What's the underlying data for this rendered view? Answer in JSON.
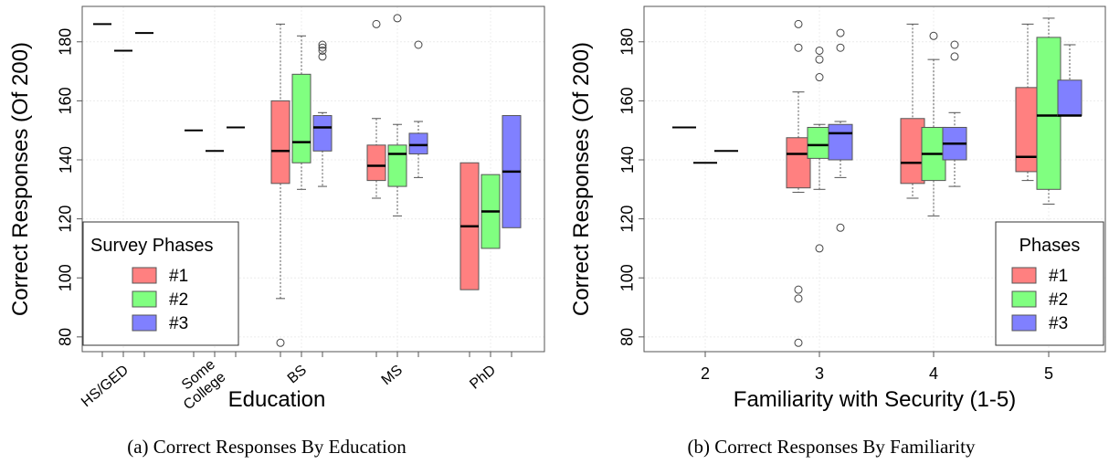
{
  "chart_data": [
    {
      "type": "box",
      "caption": "(a) Correct Responses By Education",
      "xlabel": "Education",
      "ylabel": "Correct Responses (Of 200)",
      "ylim": [
        75,
        192
      ],
      "yticks": [
        80,
        100,
        120,
        140,
        160,
        180
      ],
      "grid": true,
      "categories": [
        "HS/GED",
        "Some College",
        "BS",
        "MS",
        "PhD"
      ],
      "category_labels": [
        [
          "HS/GED"
        ],
        [
          "Some",
          "College"
        ],
        [
          "BS"
        ],
        [
          "MS"
        ],
        [
          "PhD"
        ]
      ],
      "legend": {
        "title": "Survey Phases",
        "position": "bottom-left",
        "entries": [
          "#1",
          "#2",
          "#3"
        ]
      },
      "series": [
        {
          "name": "#1",
          "color": "#ff8080",
          "boxes": [
            {
              "category": "HS/GED",
              "min": 186,
              "q1": 186,
              "median": 186,
              "q3": 186,
              "max": 186,
              "outliers": []
            },
            {
              "category": "Some College",
              "min": 150,
              "q1": 150,
              "median": 150,
              "q3": 150,
              "max": 150,
              "outliers": []
            },
            {
              "category": "BS",
              "min": 93,
              "q1": 132,
              "median": 143,
              "q3": 160,
              "max": 186,
              "outliers": [
                78
              ]
            },
            {
              "category": "MS",
              "min": 127,
              "q1": 133,
              "median": 138,
              "q3": 145,
              "max": 154,
              "outliers": [
                186
              ]
            },
            {
              "category": "PhD",
              "min": 96,
              "q1": 96,
              "median": 117.5,
              "q3": 139,
              "max": 139,
              "outliers": []
            }
          ]
        },
        {
          "name": "#2",
          "color": "#80ff80",
          "boxes": [
            {
              "category": "HS/GED",
              "min": 177,
              "q1": 177,
              "median": 177,
              "q3": 177,
              "max": 177,
              "outliers": []
            },
            {
              "category": "Some College",
              "min": 143,
              "q1": 143,
              "median": 143,
              "q3": 143,
              "max": 143,
              "outliers": []
            },
            {
              "category": "BS",
              "min": 130,
              "q1": 139,
              "median": 146,
              "q3": 169,
              "max": 182,
              "outliers": []
            },
            {
              "category": "MS",
              "min": 121,
              "q1": 131,
              "median": 142,
              "q3": 145,
              "max": 152,
              "outliers": [
                188
              ]
            },
            {
              "category": "PhD",
              "min": 110,
              "q1": 110,
              "median": 122.5,
              "q3": 135,
              "max": 135,
              "outliers": []
            }
          ]
        },
        {
          "name": "#3",
          "color": "#8080ff",
          "boxes": [
            {
              "category": "HS/GED",
              "min": 183,
              "q1": 183,
              "median": 183,
              "q3": 183,
              "max": 183,
              "outliers": []
            },
            {
              "category": "Some College",
              "min": 151,
              "q1": 151,
              "median": 151,
              "q3": 151,
              "max": 151,
              "outliers": []
            },
            {
              "category": "BS",
              "min": 131,
              "q1": 143,
              "median": 151,
              "q3": 155,
              "max": 156,
              "outliers": [
                175,
                177,
                178,
                179
              ]
            },
            {
              "category": "MS",
              "min": 134,
              "q1": 142,
              "median": 145,
              "q3": 149,
              "max": 153,
              "outliers": [
                179
              ]
            },
            {
              "category": "PhD",
              "min": 117,
              "q1": 117,
              "median": 136,
              "q3": 155,
              "max": 155,
              "outliers": []
            }
          ]
        }
      ]
    },
    {
      "type": "box",
      "caption": "(b) Correct Responses By Familiarity",
      "xlabel": "Familiarity with Security (1-5)",
      "ylabel": "Correct Responses (Of 200)",
      "ylim": [
        75,
        192
      ],
      "yticks": [
        80,
        100,
        120,
        140,
        160,
        180
      ],
      "grid": true,
      "categories": [
        "2",
        "3",
        "4",
        "5"
      ],
      "category_labels": [
        [
          "2"
        ],
        [
          "3"
        ],
        [
          "4"
        ],
        [
          "5"
        ]
      ],
      "legend": {
        "title": "Phases",
        "position": "bottom-right",
        "entries": [
          "#1",
          "#2",
          "#3"
        ]
      },
      "series": [
        {
          "name": "#1",
          "color": "#ff8080",
          "boxes": [
            {
              "category": "2",
              "min": 151,
              "q1": 151,
              "median": 151,
              "q3": 151,
              "max": 151,
              "outliers": []
            },
            {
              "category": "3",
              "min": 129,
              "q1": 130.5,
              "median": 142,
              "q3": 147.5,
              "max": 163,
              "outliers": [
                78,
                93,
                96,
                178,
                186
              ]
            },
            {
              "category": "4",
              "min": 127,
              "q1": 132,
              "median": 139,
              "q3": 154,
              "max": 186,
              "outliers": []
            },
            {
              "category": "5",
              "min": 133,
              "q1": 136,
              "median": 141,
              "q3": 164.5,
              "max": 186,
              "outliers": []
            }
          ]
        },
        {
          "name": "#2",
          "color": "#80ff80",
          "boxes": [
            {
              "category": "2",
              "min": 139,
              "q1": 139,
              "median": 139,
              "q3": 139,
              "max": 139,
              "outliers": []
            },
            {
              "category": "3",
              "min": 130,
              "q1": 140.5,
              "median": 145,
              "q3": 151,
              "max": 152,
              "outliers": [
                110,
                168,
                174,
                177
              ]
            },
            {
              "category": "4",
              "min": 121,
              "q1": 133,
              "median": 142,
              "q3": 151,
              "max": 174,
              "outliers": [
                182
              ]
            },
            {
              "category": "5",
              "min": 125,
              "q1": 130,
              "median": 155,
              "q3": 181.5,
              "max": 188,
              "outliers": []
            }
          ]
        },
        {
          "name": "#3",
          "color": "#8080ff",
          "boxes": [
            {
              "category": "2",
              "min": 143,
              "q1": 143,
              "median": 143,
              "q3": 143,
              "max": 143,
              "outliers": []
            },
            {
              "category": "3",
              "min": 134,
              "q1": 140,
              "median": 149,
              "q3": 152,
              "max": 153,
              "outliers": [
                117,
                178,
                183
              ]
            },
            {
              "category": "4",
              "min": 131,
              "q1": 140,
              "median": 145.5,
              "q3": 151,
              "max": 156,
              "outliers": [
                175,
                179
              ]
            },
            {
              "category": "5",
              "min": 155,
              "q1": 155,
              "median": 155,
              "q3": 167,
              "max": 179,
              "outliers": []
            }
          ]
        }
      ]
    }
  ]
}
